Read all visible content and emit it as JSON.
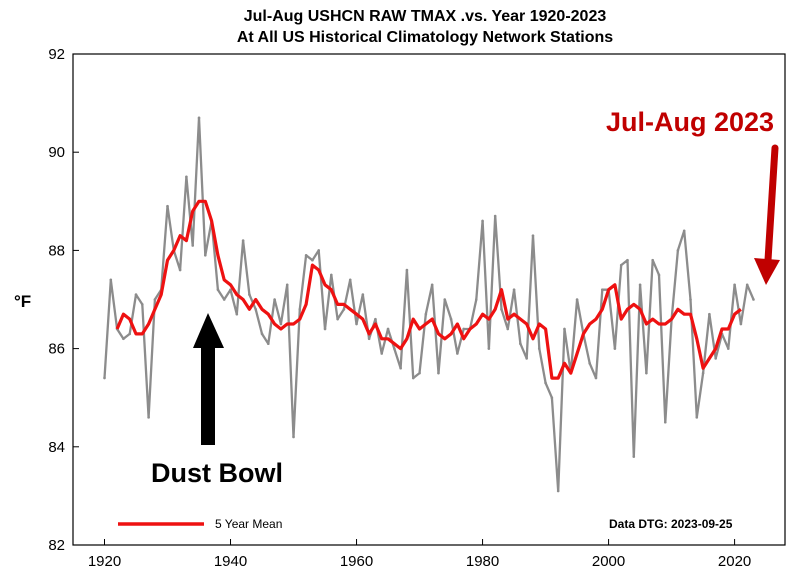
{
  "colors": {
    "raw_series": "#8c8c8c",
    "mean_series": "#ee1111",
    "annotation_red": "#c00000",
    "arrow_black": "#000000"
  },
  "chart_data": {
    "type": "line",
    "title": "Jul-Aug USHCN RAW TMAX .vs. Year 1920-2023",
    "subtitle": "At All US Historical Climatology Network Stations",
    "xlabel": "",
    "ylabel": "°F",
    "xlim": [
      1915,
      2028
    ],
    "ylim": [
      82,
      92
    ],
    "xticks": [
      1920,
      1940,
      1960,
      1980,
      2000,
      2020
    ],
    "yticks": [
      82,
      84,
      86,
      88,
      90,
      92
    ],
    "grid": false,
    "legend_position": "bottom-left",
    "series": [
      {
        "role": "raw",
        "x": [
          1920,
          1921,
          1922,
          1923,
          1924,
          1925,
          1926,
          1927,
          1928,
          1929,
          1930,
          1931,
          1932,
          1933,
          1934,
          1935,
          1936,
          1937,
          1938,
          1939,
          1940,
          1941,
          1942,
          1943,
          1944,
          1945,
          1946,
          1947,
          1948,
          1949,
          1950,
          1951,
          1952,
          1953,
          1954,
          1955,
          1956,
          1957,
          1958,
          1959,
          1960,
          1961,
          1962,
          1963,
          1964,
          1965,
          1966,
          1967,
          1968,
          1969,
          1970,
          1971,
          1972,
          1973,
          1974,
          1975,
          1976,
          1977,
          1978,
          1979,
          1980,
          1981,
          1982,
          1983,
          1984,
          1985,
          1986,
          1987,
          1988,
          1989,
          1990,
          1991,
          1992,
          1993,
          1994,
          1995,
          1996,
          1997,
          1998,
          1999,
          2000,
          2001,
          2002,
          2003,
          2004,
          2005,
          2006,
          2007,
          2008,
          2009,
          2010,
          2011,
          2012,
          2013,
          2014,
          2015,
          2016,
          2017,
          2018,
          2019,
          2020,
          2021,
          2022,
          2023
        ],
        "values": [
          85.4,
          87.4,
          86.4,
          86.2,
          86.3,
          87.1,
          86.9,
          84.6,
          87.0,
          87.2,
          88.9,
          88.0,
          87.6,
          89.5,
          88.1,
          90.7,
          87.9,
          88.6,
          87.2,
          87.0,
          87.2,
          86.7,
          88.2,
          87.1,
          86.8,
          86.3,
          86.1,
          87.0,
          86.5,
          87.3,
          84.2,
          86.8,
          87.9,
          87.8,
          88.0,
          86.4,
          87.5,
          86.6,
          86.8,
          87.4,
          86.5,
          87.1,
          86.2,
          86.6,
          85.9,
          86.4,
          86.0,
          85.6,
          87.6,
          85.4,
          85.5,
          86.7,
          87.3,
          85.5,
          87.0,
          86.6,
          85.9,
          86.4,
          86.4,
          87.0,
          88.6,
          86.0,
          88.7,
          86.8,
          86.4,
          87.2,
          86.1,
          85.8,
          88.3,
          86.0,
          85.3,
          85.0,
          83.1,
          86.4,
          85.5,
          87.0,
          86.3,
          85.7,
          85.4,
          87.2,
          87.2,
          86.0,
          87.7,
          87.8,
          83.8,
          87.3,
          85.5,
          87.8,
          87.5,
          84.5,
          86.6,
          88.0,
          88.4,
          87.0,
          84.6,
          85.5,
          86.7,
          85.8,
          86.3,
          86.0,
          87.3,
          86.5,
          87.3,
          87.0
        ]
      },
      {
        "name": "5 Year Mean",
        "x": [
          1922,
          1923,
          1924,
          1925,
          1926,
          1927,
          1928,
          1929,
          1930,
          1931,
          1932,
          1933,
          1934,
          1935,
          1936,
          1937,
          1938,
          1939,
          1940,
          1941,
          1942,
          1943,
          1944,
          1945,
          1946,
          1947,
          1948,
          1949,
          1950,
          1951,
          1952,
          1953,
          1954,
          1955,
          1956,
          1957,
          1958,
          1959,
          1960,
          1961,
          1962,
          1963,
          1964,
          1965,
          1966,
          1967,
          1968,
          1969,
          1970,
          1971,
          1972,
          1973,
          1974,
          1975,
          1976,
          1977,
          1978,
          1979,
          1980,
          1981,
          1982,
          1983,
          1984,
          1985,
          1986,
          1987,
          1988,
          1989,
          1990,
          1991,
          1992,
          1993,
          1994,
          1995,
          1996,
          1997,
          1998,
          1999,
          2000,
          2001,
          2002,
          2003,
          2004,
          2005,
          2006,
          2007,
          2008,
          2009,
          2010,
          2011,
          2012,
          2013,
          2014,
          2015,
          2016,
          2017,
          2018,
          2019,
          2020,
          2021
        ],
        "values": [
          86.4,
          86.7,
          86.6,
          86.3,
          86.3,
          86.5,
          86.8,
          87.1,
          87.8,
          88.0,
          88.3,
          88.2,
          88.8,
          89.0,
          89.0,
          88.6,
          87.9,
          87.4,
          87.3,
          87.1,
          87.0,
          86.8,
          87.0,
          86.8,
          86.7,
          86.5,
          86.4,
          86.5,
          86.5,
          86.6,
          86.9,
          87.7,
          87.6,
          87.3,
          87.2,
          86.9,
          86.9,
          86.8,
          86.7,
          86.6,
          86.3,
          86.5,
          86.2,
          86.2,
          86.1,
          86.0,
          86.2,
          86.6,
          86.4,
          86.5,
          86.6,
          86.3,
          86.2,
          86.3,
          86.5,
          86.2,
          86.4,
          86.5,
          86.7,
          86.6,
          86.8,
          87.2,
          86.6,
          86.7,
          86.6,
          86.5,
          86.2,
          86.5,
          86.4,
          85.4,
          85.4,
          85.7,
          85.5,
          85.9,
          86.3,
          86.5,
          86.6,
          86.8,
          87.2,
          87.3,
          86.6,
          86.8,
          86.9,
          86.8,
          86.5,
          86.6,
          86.5,
          86.5,
          86.6,
          86.8,
          86.7,
          86.7,
          86.2,
          85.6,
          85.8,
          86.0,
          86.4,
          86.4,
          86.7,
          86.8
        ]
      }
    ],
    "annotations": {
      "left_label": "Dust Bowl",
      "right_label": "Jul-Aug 2023",
      "data_dtg": "Data DTG: 2023-09-25"
    }
  }
}
